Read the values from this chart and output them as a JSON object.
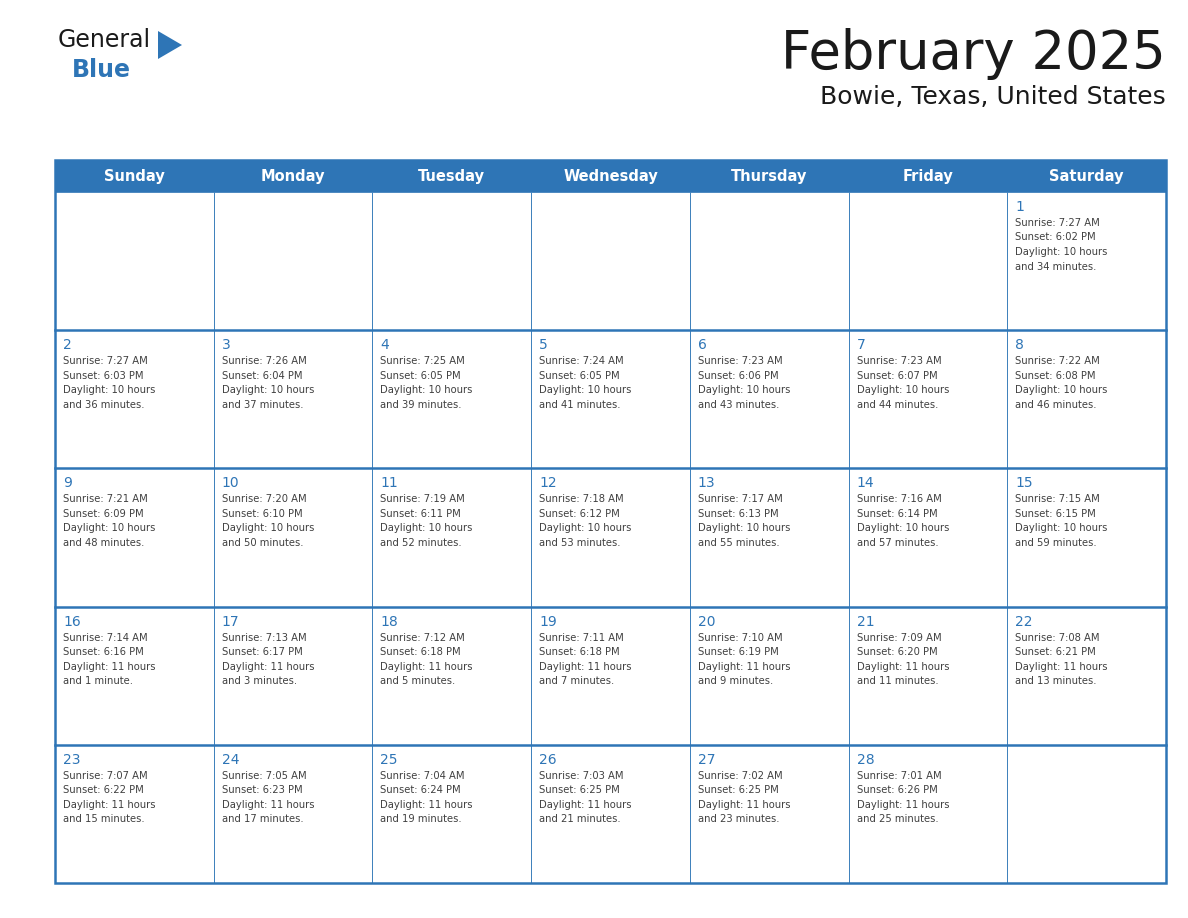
{
  "title": "February 2025",
  "subtitle": "Bowie, Texas, United States",
  "days_of_week": [
    "Sunday",
    "Monday",
    "Tuesday",
    "Wednesday",
    "Thursday",
    "Friday",
    "Saturday"
  ],
  "header_bg": "#2E75B6",
  "header_text": "#FFFFFF",
  "cell_bg": "#FFFFFF",
  "border_color": "#2E75B6",
  "day_number_color": "#2E75B6",
  "cell_text_color": "#404040",
  "title_color": "#1a1a1a",
  "subtitle_color": "#1a1a1a",
  "logo_general_color": "#1a1a1a",
  "logo_blue_color": "#2E75B6",
  "calendar_data": [
    [
      null,
      null,
      null,
      null,
      null,
      null,
      {
        "day": "1",
        "sunrise": "7:27 AM",
        "sunset": "6:02 PM",
        "daylight": "10 hours\nand 34 minutes."
      }
    ],
    [
      {
        "day": "2",
        "sunrise": "7:27 AM",
        "sunset": "6:03 PM",
        "daylight": "10 hours\nand 36 minutes."
      },
      {
        "day": "3",
        "sunrise": "7:26 AM",
        "sunset": "6:04 PM",
        "daylight": "10 hours\nand 37 minutes."
      },
      {
        "day": "4",
        "sunrise": "7:25 AM",
        "sunset": "6:05 PM",
        "daylight": "10 hours\nand 39 minutes."
      },
      {
        "day": "5",
        "sunrise": "7:24 AM",
        "sunset": "6:05 PM",
        "daylight": "10 hours\nand 41 minutes."
      },
      {
        "day": "6",
        "sunrise": "7:23 AM",
        "sunset": "6:06 PM",
        "daylight": "10 hours\nand 43 minutes."
      },
      {
        "day": "7",
        "sunrise": "7:23 AM",
        "sunset": "6:07 PM",
        "daylight": "10 hours\nand 44 minutes."
      },
      {
        "day": "8",
        "sunrise": "7:22 AM",
        "sunset": "6:08 PM",
        "daylight": "10 hours\nand 46 minutes."
      }
    ],
    [
      {
        "day": "9",
        "sunrise": "7:21 AM",
        "sunset": "6:09 PM",
        "daylight": "10 hours\nand 48 minutes."
      },
      {
        "day": "10",
        "sunrise": "7:20 AM",
        "sunset": "6:10 PM",
        "daylight": "10 hours\nand 50 minutes."
      },
      {
        "day": "11",
        "sunrise": "7:19 AM",
        "sunset": "6:11 PM",
        "daylight": "10 hours\nand 52 minutes."
      },
      {
        "day": "12",
        "sunrise": "7:18 AM",
        "sunset": "6:12 PM",
        "daylight": "10 hours\nand 53 minutes."
      },
      {
        "day": "13",
        "sunrise": "7:17 AM",
        "sunset": "6:13 PM",
        "daylight": "10 hours\nand 55 minutes."
      },
      {
        "day": "14",
        "sunrise": "7:16 AM",
        "sunset": "6:14 PM",
        "daylight": "10 hours\nand 57 minutes."
      },
      {
        "day": "15",
        "sunrise": "7:15 AM",
        "sunset": "6:15 PM",
        "daylight": "10 hours\nand 59 minutes."
      }
    ],
    [
      {
        "day": "16",
        "sunrise": "7:14 AM",
        "sunset": "6:16 PM",
        "daylight": "11 hours\nand 1 minute."
      },
      {
        "day": "17",
        "sunrise": "7:13 AM",
        "sunset": "6:17 PM",
        "daylight": "11 hours\nand 3 minutes."
      },
      {
        "day": "18",
        "sunrise": "7:12 AM",
        "sunset": "6:18 PM",
        "daylight": "11 hours\nand 5 minutes."
      },
      {
        "day": "19",
        "sunrise": "7:11 AM",
        "sunset": "6:18 PM",
        "daylight": "11 hours\nand 7 minutes."
      },
      {
        "day": "20",
        "sunrise": "7:10 AM",
        "sunset": "6:19 PM",
        "daylight": "11 hours\nand 9 minutes."
      },
      {
        "day": "21",
        "sunrise": "7:09 AM",
        "sunset": "6:20 PM",
        "daylight": "11 hours\nand 11 minutes."
      },
      {
        "day": "22",
        "sunrise": "7:08 AM",
        "sunset": "6:21 PM",
        "daylight": "11 hours\nand 13 minutes."
      }
    ],
    [
      {
        "day": "23",
        "sunrise": "7:07 AM",
        "sunset": "6:22 PM",
        "daylight": "11 hours\nand 15 minutes."
      },
      {
        "day": "24",
        "sunrise": "7:05 AM",
        "sunset": "6:23 PM",
        "daylight": "11 hours\nand 17 minutes."
      },
      {
        "day": "25",
        "sunrise": "7:04 AM",
        "sunset": "6:24 PM",
        "daylight": "11 hours\nand 19 minutes."
      },
      {
        "day": "26",
        "sunrise": "7:03 AM",
        "sunset": "6:25 PM",
        "daylight": "11 hours\nand 21 minutes."
      },
      {
        "day": "27",
        "sunrise": "7:02 AM",
        "sunset": "6:25 PM",
        "daylight": "11 hours\nand 23 minutes."
      },
      {
        "day": "28",
        "sunrise": "7:01 AM",
        "sunset": "6:26 PM",
        "daylight": "11 hours\nand 25 minutes."
      },
      null
    ]
  ]
}
